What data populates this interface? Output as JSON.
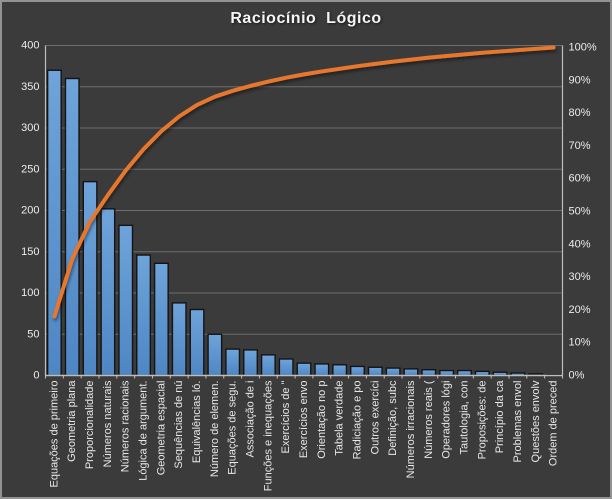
{
  "chart_data": {
    "type": "bar",
    "variant": "pareto-combo",
    "title": "Raciocínio  Lógico",
    "legend": "none",
    "grid": true,
    "categories": [
      "Equações de primeiro",
      "Geometria plana",
      "Proporcionalidade",
      "Números naturais",
      "Números racionais",
      "Lógica de argument.",
      "Geometria espacial",
      "Sequências de nú",
      "Equivalências ló.",
      "Número de elemen.",
      "Equações de segu.",
      "Associação de i",
      "Funções e inequações",
      "Exercícios de \"",
      "Exercícios envo",
      "Orientação no p",
      "Tabela verdade",
      "Radiciação e po",
      "Outros exercíci",
      "Definição, subc",
      "Números irracionais",
      "Números reais (",
      "Operadores lógi",
      "Tautologia, con",
      "Proposições: de",
      "Princípio da ca",
      "Problemas envol",
      "Questões envolv",
      "Ordem de preced"
    ],
    "series": [
      {
        "name": "bar-frequency",
        "type": "bar",
        "axis": "left",
        "values": [
          370,
          360,
          235,
          202,
          182,
          146,
          136,
          88,
          80,
          50,
          32,
          31,
          25,
          20,
          15,
          14,
          13,
          11,
          10,
          9,
          8,
          7,
          6,
          6,
          5,
          4,
          3,
          2,
          1
        ]
      },
      {
        "name": "line-cumulative-percent",
        "type": "line",
        "axis": "right",
        "values": [
          18,
          35.5,
          47,
          55,
          62.5,
          69,
          74.5,
          79,
          82.5,
          85,
          86.8,
          88.3,
          89.6,
          90.8,
          91.8,
          92.7,
          93.5,
          94.3,
          95,
          95.7,
          96.3,
          96.9,
          97.4,
          97.9,
          98.4,
          98.8,
          99.2,
          99.6,
          100
        ]
      }
    ],
    "left_axis": {
      "min": 0,
      "max": 400,
      "step": 50,
      "tick_labels": [
        "0",
        "50",
        "100",
        "150",
        "200",
        "250",
        "300",
        "350",
        "400"
      ]
    },
    "right_axis": {
      "min": 0,
      "max": 100,
      "step": 10,
      "tick_labels": [
        "0%",
        "10%",
        "20%",
        "30%",
        "40%",
        "50%",
        "60%",
        "70%",
        "80%",
        "90%",
        "100%"
      ]
    },
    "colors": {
      "background": "#3B3B3B",
      "bar_fill_top": "#6FA4DA",
      "bar_fill_bottom": "#4E86C4",
      "bar_border": "#141414",
      "line": "#E8772E",
      "grid": "#6E6E6E",
      "axis": "#BEBEBE",
      "text": "#ECECEC"
    }
  }
}
